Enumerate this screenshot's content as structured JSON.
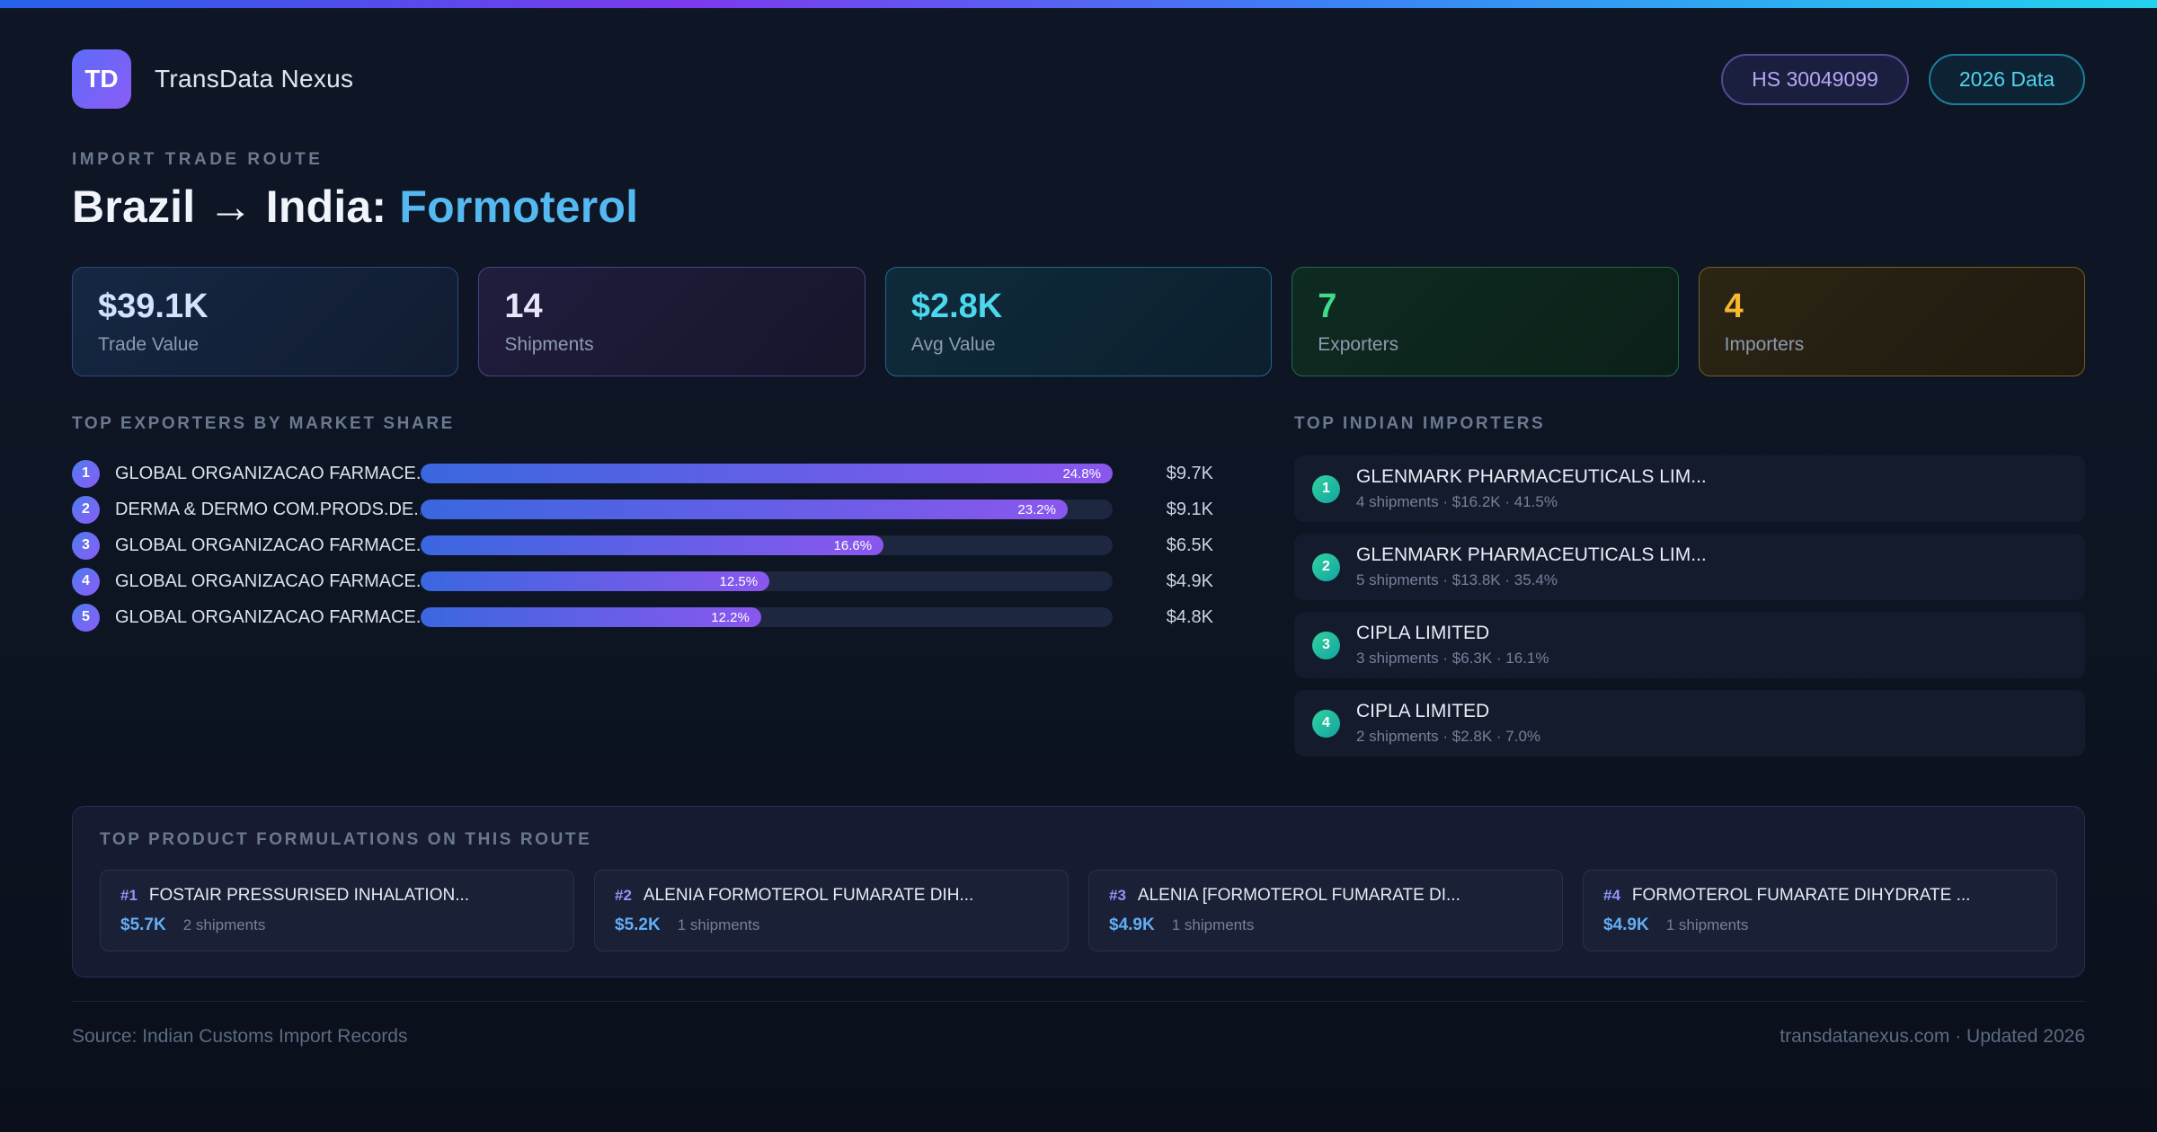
{
  "colors": {
    "accent_blue": "#55b9f1",
    "bar_gradient_start": "#3a67e0",
    "bar_gradient_end": "#8a57ee",
    "importer_badge_teal": "#2dd4a2",
    "stat_cyan": "#4cd7ef",
    "stat_green": "#3fdc8a",
    "stat_amber": "#f5b82e"
  },
  "header": {
    "logo_text": "TD",
    "brand": "TransData Nexus",
    "hs_badge": "HS 30049099",
    "year_badge": "2026 Data"
  },
  "hero": {
    "eyebrow": "IMPORT TRADE ROUTE",
    "title_route": "Brazil → India:",
    "title_accent": "Formoterol"
  },
  "stats": [
    {
      "value": "$39.1K",
      "label": "Trade Value"
    },
    {
      "value": "14",
      "label": "Shipments"
    },
    {
      "value": "$2.8K",
      "label": "Avg Value"
    },
    {
      "value": "7",
      "label": "Exporters"
    },
    {
      "value": "4",
      "label": "Importers"
    }
  ],
  "exporters": {
    "title": "TOP EXPORTERS BY MARKET SHARE",
    "max_share": 24.8,
    "rows": [
      {
        "rank": "1",
        "name": "GLOBAL ORGANIZACAO FARMACE...",
        "share": 24.8,
        "share_label": "24.8%",
        "value": "$9.7K"
      },
      {
        "rank": "2",
        "name": "DERMA & DERMO COM.PRODS.DE...",
        "share": 23.2,
        "share_label": "23.2%",
        "value": "$9.1K"
      },
      {
        "rank": "3",
        "name": "GLOBAL ORGANIZACAO FARMACE...",
        "share": 16.6,
        "share_label": "16.6%",
        "value": "$6.5K"
      },
      {
        "rank": "4",
        "name": "GLOBAL ORGANIZACAO FARMACE...",
        "share": 12.5,
        "share_label": "12.5%",
        "value": "$4.9K"
      },
      {
        "rank": "5",
        "name": "GLOBAL ORGANIZACAO FARMACE...",
        "share": 12.2,
        "share_label": "12.2%",
        "value": "$4.8K"
      }
    ]
  },
  "importers": {
    "title": "TOP INDIAN IMPORTERS",
    "rows": [
      {
        "rank": "1",
        "name": "GLENMARK PHARMACEUTICALS LIM...",
        "meta": "4 shipments · $16.2K · 41.5%"
      },
      {
        "rank": "2",
        "name": "GLENMARK PHARMACEUTICALS LIM...",
        "meta": "5 shipments · $13.8K · 35.4%"
      },
      {
        "rank": "3",
        "name": "CIPLA LIMITED",
        "meta": "3 shipments · $6.3K · 16.1%"
      },
      {
        "rank": "4",
        "name": "CIPLA LIMITED",
        "meta": "2 shipments · $2.8K · 7.0%"
      }
    ]
  },
  "formulations": {
    "title": "TOP PRODUCT FORMULATIONS ON THIS ROUTE",
    "cards": [
      {
        "rank": "#1",
        "name": "FOSTAIR PRESSURISED INHALATION...",
        "value": "$5.7K",
        "shipments": "2 shipments"
      },
      {
        "rank": "#2",
        "name": "ALENIA FORMOTEROL FUMARATE DIH...",
        "value": "$5.2K",
        "shipments": "1 shipments"
      },
      {
        "rank": "#3",
        "name": "ALENIA [FORMOTEROL FUMARATE DI...",
        "value": "$4.9K",
        "shipments": "1 shipments"
      },
      {
        "rank": "#4",
        "name": "FORMOTEROL FUMARATE DIHYDRATE ...",
        "value": "$4.9K",
        "shipments": "1 shipments"
      }
    ]
  },
  "footer": {
    "source": "Source: Indian Customs Import Records",
    "site": "transdatanexus.com · Updated 2026"
  },
  "chart_data": {
    "type": "bar",
    "orientation": "horizontal",
    "title": "TOP EXPORTERS BY MARKET SHARE",
    "categories": [
      "GLOBAL ORGANIZACAO FARMACE...",
      "DERMA & DERMO COM.PRODS.DE...",
      "GLOBAL ORGANIZACAO FARMACE...",
      "GLOBAL ORGANIZACAO FARMACE...",
      "GLOBAL ORGANIZACAO FARMACE..."
    ],
    "values": [
      24.8,
      23.2,
      16.6,
      12.5,
      12.2
    ],
    "value_labels": [
      "$9.7K",
      "$9.1K",
      "$6.5K",
      "$4.9K",
      "$4.8K"
    ],
    "xlabel": "Market share (%)",
    "ylabel": "",
    "xlim": [
      0,
      24.8
    ],
    "grid": false,
    "legend": false
  }
}
